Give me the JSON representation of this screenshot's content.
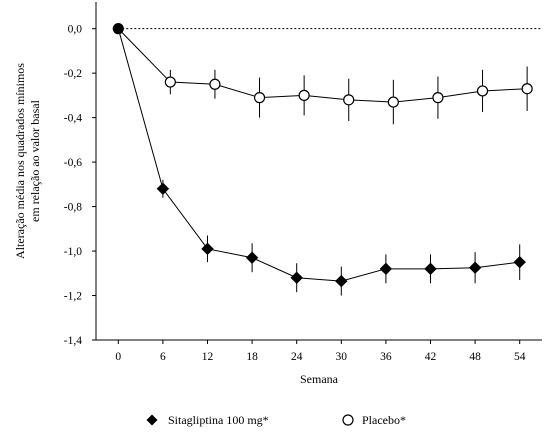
{
  "chart_data": {
    "type": "line",
    "xlabel": "Semana",
    "ylabel_lines": [
      "Alteração média nos quadrados mínimos",
      "em relação ao valor basal"
    ],
    "x_ticks": [
      0,
      6,
      12,
      18,
      24,
      30,
      36,
      42,
      48,
      54
    ],
    "y_ticks": [
      0.0,
      -0.2,
      -0.4,
      -0.6,
      -0.8,
      -1.0,
      -1.2,
      -1.4
    ],
    "y_tick_labels": [
      "0,0",
      "-0,2",
      "-0,4",
      "-0,6",
      "-0,8",
      "-1,0",
      "-1,2",
      "-1,4"
    ],
    "xlim": [
      -3,
      57
    ],
    "ylim": [
      -1.4,
      0.12
    ],
    "reference_line_y": 0,
    "grid": false,
    "legend_position": "bottom",
    "series": [
      {
        "name": "Sitagliptina 100 mg*",
        "marker": "filled-diamond",
        "color": "#000000",
        "x": [
          0,
          6,
          12,
          18,
          24,
          30,
          36,
          42,
          48,
          54
        ],
        "y": [
          0.0,
          -0.72,
          -0.99,
          -1.03,
          -1.12,
          -1.135,
          -1.08,
          -1.08,
          -1.075,
          -1.05
        ],
        "err": [
          0,
          0.04,
          0.06,
          0.065,
          0.065,
          0.065,
          0.065,
          0.065,
          0.07,
          0.08
        ]
      },
      {
        "name": "Placebo*",
        "marker": "open-circle",
        "color": "#000000",
        "x": [
          0,
          7,
          13,
          19,
          25,
          31,
          37,
          43,
          49,
          55
        ],
        "y": [
          0.0,
          -0.24,
          -0.25,
          -0.31,
          -0.3,
          -0.32,
          -0.33,
          -0.31,
          -0.28,
          -0.27
        ],
        "err": [
          0,
          0.055,
          0.065,
          0.09,
          0.09,
          0.095,
          0.1,
          0.095,
          0.095,
          0.1
        ]
      }
    ]
  }
}
